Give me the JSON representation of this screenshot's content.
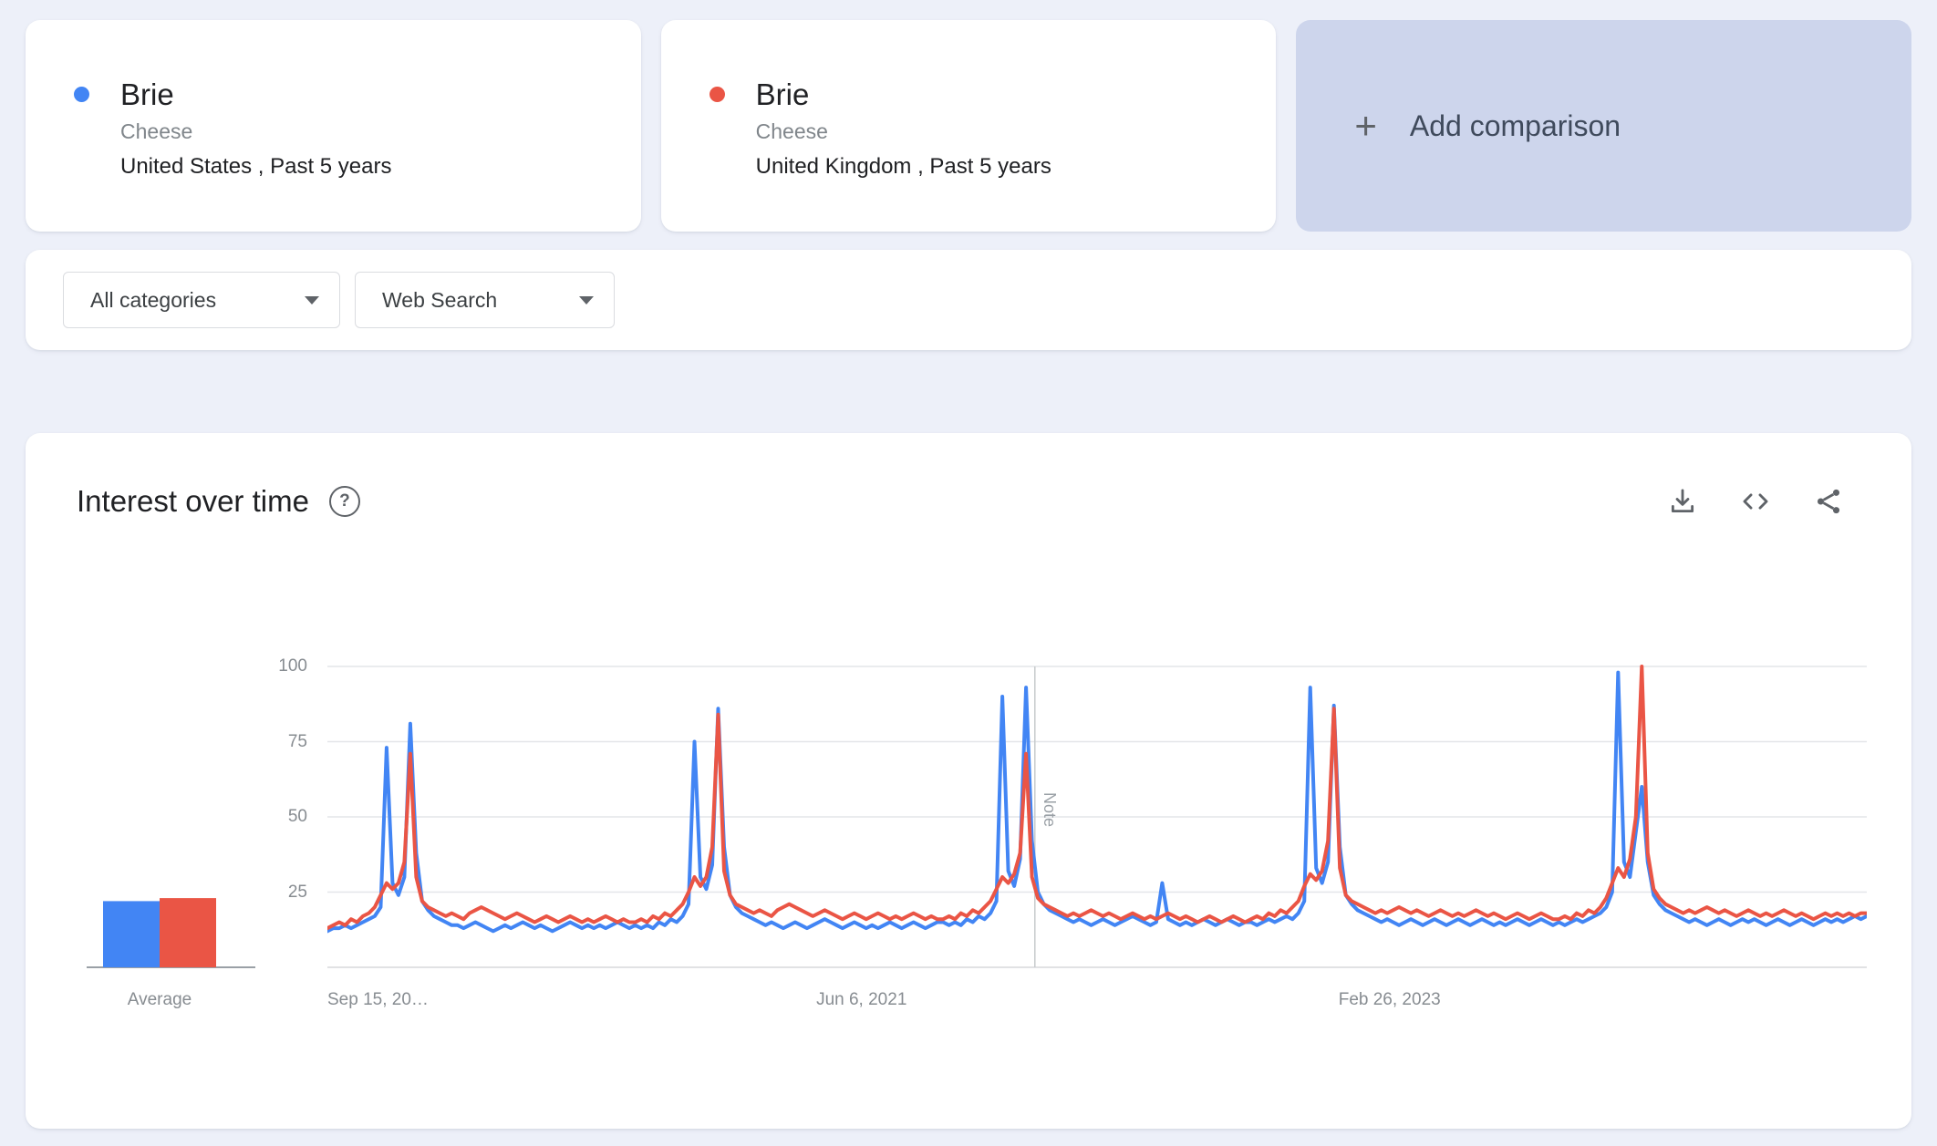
{
  "icons": {
    "plus": "+",
    "help": "?"
  },
  "comparison": {
    "cards": [
      {
        "term": "Brie",
        "category": "Cheese",
        "scope": "United States , Past 5 years",
        "color": "#4285f4"
      },
      {
        "term": "Brie",
        "category": "Cheese",
        "scope": "United Kingdom , Past 5 years",
        "color": "#ea5545"
      }
    ],
    "add_label": "Add comparison"
  },
  "filters": {
    "category_label": "All categories",
    "search_type_label": "Web Search"
  },
  "trend_card": {
    "title": "Interest over time"
  },
  "chart_data": {
    "type": "line",
    "title": "Interest over time",
    "x_axis": {
      "tick_labels": [
        "Sep 15, 20…",
        "Jun 6, 2021",
        "Feb 26, 2023"
      ],
      "tick_positions": [
        0,
        0.347,
        0.69
      ]
    },
    "y_axis": {
      "ticks": [
        25,
        50,
        75,
        100
      ],
      "range": [
        0,
        100
      ]
    },
    "note_marker": {
      "label": "Note",
      "position": 0.4596
    },
    "average_label": "Average",
    "series": [
      {
        "name": "Brie (United States)",
        "color": "#4285f4",
        "average": 22,
        "values": [
          12,
          13,
          13,
          14,
          13,
          14,
          15,
          16,
          17,
          20,
          73,
          28,
          24,
          30,
          81,
          38,
          22,
          19,
          17,
          16,
          15,
          14,
          14,
          13,
          14,
          15,
          14,
          13,
          12,
          13,
          14,
          13,
          14,
          15,
          14,
          13,
          14,
          13,
          12,
          13,
          14,
          15,
          14,
          13,
          14,
          13,
          14,
          13,
          14,
          15,
          14,
          13,
          14,
          13,
          14,
          13,
          15,
          14,
          16,
          15,
          17,
          21,
          75,
          30,
          26,
          34,
          86,
          40,
          24,
          20,
          18,
          17,
          16,
          15,
          14,
          15,
          14,
          13,
          14,
          15,
          14,
          13,
          14,
          15,
          16,
          15,
          14,
          13,
          14,
          15,
          14,
          13,
          14,
          13,
          14,
          15,
          14,
          13,
          14,
          15,
          14,
          13,
          14,
          15,
          15,
          14,
          15,
          14,
          16,
          15,
          17,
          16,
          18,
          22,
          90,
          32,
          27,
          36,
          93,
          42,
          25,
          21,
          19,
          18,
          17,
          16,
          15,
          16,
          15,
          14,
          15,
          16,
          15,
          14,
          15,
          16,
          17,
          16,
          15,
          14,
          15,
          28,
          16,
          15,
          14,
          15,
          14,
          15,
          16,
          15,
          14,
          15,
          16,
          15,
          14,
          15,
          15,
          14,
          15,
          16,
          15,
          16,
          17,
          16,
          18,
          22,
          93,
          33,
          28,
          35,
          87,
          40,
          24,
          21,
          19,
          18,
          17,
          16,
          15,
          16,
          15,
          14,
          15,
          16,
          15,
          14,
          15,
          16,
          15,
          14,
          15,
          16,
          15,
          14,
          15,
          16,
          15,
          14,
          15,
          14,
          15,
          16,
          15,
          14,
          15,
          16,
          15,
          14,
          15,
          14,
          15,
          16,
          15,
          16,
          17,
          18,
          20,
          25,
          98,
          35,
          30,
          45,
          60,
          35,
          24,
          21,
          19,
          18,
          17,
          16,
          15,
          16,
          15,
          14,
          15,
          16,
          15,
          14,
          15,
          16,
          15,
          16,
          15,
          14,
          15,
          16,
          15,
          14,
          15,
          16,
          15,
          14,
          15,
          16,
          15,
          16,
          15,
          16,
          17,
          16,
          17
        ]
      },
      {
        "name": "Brie (United Kingdom)",
        "color": "#ea5545",
        "average": 23,
        "values": [
          13,
          14,
          15,
          14,
          16,
          15,
          17,
          18,
          20,
          24,
          28,
          26,
          28,
          35,
          71,
          30,
          22,
          20,
          19,
          18,
          17,
          18,
          17,
          16,
          18,
          19,
          20,
          19,
          18,
          17,
          16,
          17,
          18,
          17,
          16,
          15,
          16,
          17,
          16,
          15,
          16,
          17,
          16,
          15,
          16,
          15,
          16,
          17,
          16,
          15,
          16,
          15,
          15,
          16,
          15,
          17,
          16,
          18,
          17,
          19,
          21,
          25,
          30,
          27,
          30,
          40,
          84,
          32,
          24,
          21,
          20,
          19,
          18,
          19,
          18,
          17,
          19,
          20,
          21,
          20,
          19,
          18,
          17,
          18,
          19,
          18,
          17,
          16,
          17,
          18,
          17,
          16,
          17,
          18,
          17,
          16,
          17,
          16,
          17,
          18,
          17,
          16,
          17,
          16,
          16,
          17,
          16,
          18,
          17,
          19,
          18,
          20,
          22,
          26,
          30,
          28,
          31,
          38,
          71,
          30,
          23,
          21,
          20,
          19,
          18,
          17,
          18,
          17,
          18,
          19,
          18,
          17,
          18,
          17,
          16,
          17,
          18,
          17,
          16,
          17,
          16,
          17,
          18,
          17,
          16,
          17,
          16,
          15,
          16,
          17,
          16,
          15,
          16,
          17,
          16,
          15,
          16,
          17,
          16,
          18,
          17,
          19,
          18,
          20,
          22,
          27,
          31,
          29,
          32,
          42,
          86,
          33,
          24,
          22,
          21,
          20,
          19,
          18,
          19,
          18,
          19,
          20,
          19,
          18,
          19,
          18,
          17,
          18,
          19,
          18,
          17,
          18,
          17,
          18,
          19,
          18,
          17,
          18,
          17,
          16,
          17,
          18,
          17,
          16,
          17,
          18,
          17,
          16,
          16,
          17,
          16,
          18,
          17,
          19,
          18,
          20,
          23,
          28,
          33,
          30,
          36,
          50,
          100,
          38,
          26,
          23,
          21,
          20,
          19,
          18,
          19,
          18,
          19,
          20,
          19,
          18,
          19,
          18,
          17,
          18,
          19,
          18,
          17,
          18,
          17,
          18,
          19,
          18,
          17,
          18,
          17,
          16,
          17,
          18,
          17,
          18,
          17,
          18,
          17,
          18,
          18
        ]
      }
    ]
  }
}
